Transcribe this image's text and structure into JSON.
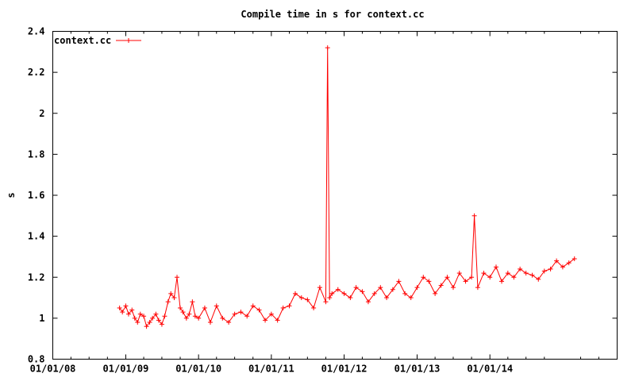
{
  "chart_data": {
    "type": "line",
    "title": "Compile time in s for context.cc",
    "xlabel": "",
    "ylabel": "s",
    "x_ticks": [
      "01/01/08",
      "01/01/09",
      "01/01/10",
      "01/01/11",
      "01/01/12",
      "01/01/13",
      "01/01/14"
    ],
    "y_ticks": [
      "0.8",
      "1",
      "1.2",
      "1.4",
      "1.6",
      "1.8",
      "2",
      "2.2",
      "2.4"
    ],
    "xlim": [
      "2008-01-01",
      "2015-10-01"
    ],
    "ylim": [
      0.8,
      2.4
    ],
    "grid": false,
    "legend_position": "top-left",
    "marker": "plus",
    "series_color": "#ff0000",
    "series": [
      {
        "name": "context.cc",
        "x": [
          "2008-12-01",
          "2008-12-15",
          "2009-01-01",
          "2009-01-15",
          "2009-02-01",
          "2009-02-15",
          "2009-03-01",
          "2009-03-15",
          "2009-04-01",
          "2009-04-15",
          "2009-05-01",
          "2009-05-15",
          "2009-06-01",
          "2009-06-15",
          "2009-07-01",
          "2009-07-15",
          "2009-08-01",
          "2009-08-15",
          "2009-09-01",
          "2009-09-15",
          "2009-10-01",
          "2009-10-15",
          "2009-11-01",
          "2009-11-15",
          "2009-12-01",
          "2009-12-15",
          "2010-01-01",
          "2010-02-01",
          "2010-03-01",
          "2010-04-01",
          "2010-05-01",
          "2010-06-01",
          "2010-07-01",
          "2010-08-01",
          "2010-09-01",
          "2010-10-01",
          "2010-11-01",
          "2010-12-01",
          "2011-01-01",
          "2011-02-01",
          "2011-03-01",
          "2011-04-01",
          "2011-05-01",
          "2011-06-01",
          "2011-07-01",
          "2011-08-01",
          "2011-09-01",
          "2011-10-01",
          "2011-10-10",
          "2011-10-20",
          "2011-11-01",
          "2011-12-01",
          "2012-01-01",
          "2012-02-01",
          "2012-03-01",
          "2012-04-01",
          "2012-05-01",
          "2012-06-01",
          "2012-07-01",
          "2012-08-01",
          "2012-09-01",
          "2012-10-01",
          "2012-11-01",
          "2012-12-01",
          "2013-01-01",
          "2013-02-01",
          "2013-03-01",
          "2013-04-01",
          "2013-05-01",
          "2013-06-01",
          "2013-07-01",
          "2013-08-01",
          "2013-09-01",
          "2013-10-01",
          "2013-10-15",
          "2013-11-01",
          "2013-12-01",
          "2014-01-01",
          "2014-02-01",
          "2014-03-01",
          "2014-04-01",
          "2014-05-01",
          "2014-06-01",
          "2014-07-01",
          "2014-08-01",
          "2014-09-01",
          "2014-10-01",
          "2014-11-01",
          "2014-12-01",
          "2015-01-01",
          "2015-02-01",
          "2015-03-01"
        ],
        "y": [
          1.05,
          1.03,
          1.06,
          1.02,
          1.04,
          1.0,
          0.98,
          1.02,
          1.01,
          0.96,
          0.98,
          1.0,
          1.02,
          0.99,
          0.97,
          1.01,
          1.08,
          1.12,
          1.1,
          1.2,
          1.05,
          1.03,
          1.0,
          1.02,
          1.08,
          1.01,
          1.0,
          1.05,
          0.98,
          1.06,
          1.0,
          0.98,
          1.02,
          1.03,
          1.01,
          1.06,
          1.04,
          0.99,
          1.02,
          0.99,
          1.05,
          1.06,
          1.12,
          1.1,
          1.09,
          1.05,
          1.15,
          1.08,
          2.32,
          1.1,
          1.12,
          1.14,
          1.12,
          1.1,
          1.15,
          1.13,
          1.08,
          1.12,
          1.15,
          1.1,
          1.14,
          1.18,
          1.12,
          1.1,
          1.15,
          1.2,
          1.18,
          1.12,
          1.16,
          1.2,
          1.15,
          1.22,
          1.18,
          1.2,
          1.5,
          1.15,
          1.22,
          1.2,
          1.25,
          1.18,
          1.22,
          1.2,
          1.24,
          1.22,
          1.21,
          1.19,
          1.23,
          1.24,
          1.28,
          1.25,
          1.27,
          1.29
        ]
      }
    ]
  }
}
